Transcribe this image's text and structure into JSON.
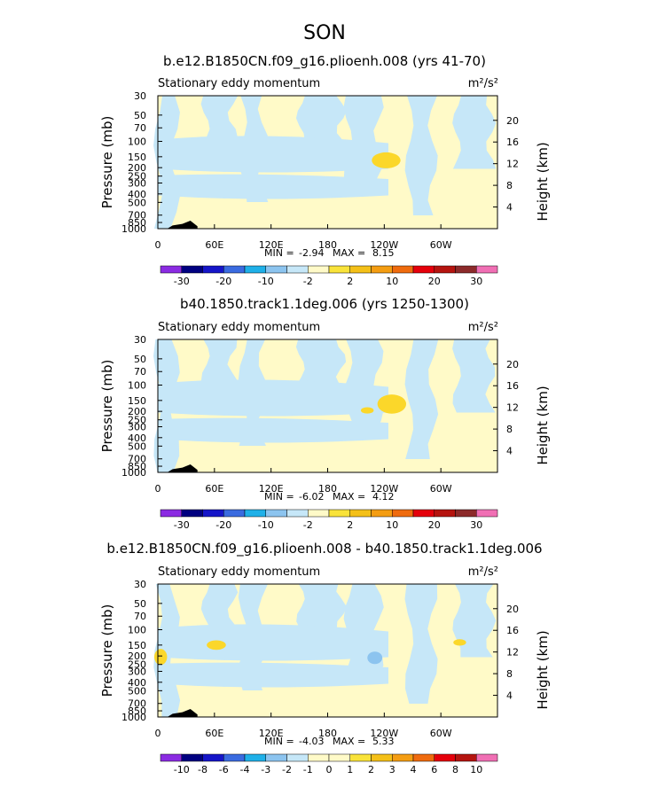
{
  "figure": {
    "title": "SON"
  },
  "colors": {
    "background_field": "#fffac8",
    "negative_fill": "#c6e7f8",
    "positive_fill": "#fbd72a",
    "negative_strong": "#8cc4ef",
    "orange": "#f4a41c",
    "terrain": "#000000"
  },
  "chart_data": [
    {
      "type": "heatmap",
      "title": "b.e12.B1850CN.f09_g16.plioenh.008 (yrs 41-70)",
      "subtitle": "Stationary eddy momentum",
      "units": "m²/s²",
      "xlabel": "",
      "ylabel": "Pressure (mb)",
      "ylabel_right": "Height (km)",
      "x_ticks": [
        "0",
        "60E",
        "120E",
        "180",
        "120W",
        "60W"
      ],
      "x_range_deg": [
        0,
        360
      ],
      "y_ticks": [
        "30",
        "50",
        "70",
        "100",
        "150",
        "200",
        "250",
        "300",
        "400",
        "500",
        "700",
        "850",
        "1000"
      ],
      "y_range_mb": [
        30,
        1000
      ],
      "height_ticks_km": [
        "20",
        "16",
        "12",
        "8",
        "4"
      ],
      "stats": {
        "min_label": "MIN =",
        "min": "-2.94",
        "max_label": "MAX =",
        "max": "8.15"
      },
      "colorbar": {
        "labels": [
          "-30",
          "-20",
          "-10",
          "-2",
          "2",
          "10",
          "20",
          "30"
        ],
        "colors": [
          "#8b2be2",
          "#000080",
          "#1515c8",
          "#3a6be0",
          "#1fb0e8",
          "#8cc4ef",
          "#c6e7f8",
          "#fffac8",
          "#f9e33a",
          "#f4c018",
          "#f49d12",
          "#ef6b0e",
          "#e5000b",
          "#b5140f",
          "#8c2a2a",
          "#f06fb4"
        ]
      },
      "features": {
        "blue_regions": [
          {
            "lon": 20,
            "p": 40,
            "w": 60,
            "h": 0.18
          },
          {
            "lon": 170,
            "p": 40,
            "w": 60,
            "h": 0.12
          },
          {
            "lon": 345,
            "p": 55,
            "w": 40,
            "h": 0.2
          }
        ],
        "yellow_blobs": [
          {
            "lon": 242,
            "p": 165,
            "rx": 9,
            "ry": 5
          }
        ],
        "terrain": [
          {
            "lon_start": 10,
            "lon_end": 42,
            "max_height": 0.03
          }
        ]
      }
    },
    {
      "type": "heatmap",
      "title": "b40.1850.track1.1deg.006 (yrs 1250-1300)",
      "subtitle": "Stationary eddy momentum",
      "units": "m²/s²",
      "xlabel": "",
      "ylabel": "Pressure (mb)",
      "ylabel_right": "Height (km)",
      "x_ticks": [
        "0",
        "60E",
        "120E",
        "180",
        "120W",
        "60W"
      ],
      "x_range_deg": [
        0,
        360
      ],
      "y_ticks": [
        "30",
        "50",
        "70",
        "100",
        "150",
        "200",
        "250",
        "300",
        "400",
        "500",
        "700",
        "850",
        "1000"
      ],
      "y_range_mb": [
        30,
        1000
      ],
      "height_ticks_km": [
        "20",
        "16",
        "12",
        "8",
        "4"
      ],
      "stats": {
        "min_label": "MIN =",
        "min": "-6.02",
        "max_label": "MAX =",
        "max": "4.12"
      },
      "colorbar": {
        "labels": [
          "-30",
          "-20",
          "-10",
          "-2",
          "2",
          "10",
          "20",
          "30"
        ],
        "colors": [
          "#8b2be2",
          "#000080",
          "#1515c8",
          "#3a6be0",
          "#1fb0e8",
          "#8cc4ef",
          "#c6e7f8",
          "#fffac8",
          "#f9e33a",
          "#f4c018",
          "#f49d12",
          "#ef6b0e",
          "#e5000b",
          "#b5140f",
          "#8c2a2a",
          "#f06fb4"
        ]
      },
      "features": {
        "yellow_blobs": [
          {
            "lon": 248,
            "p": 165,
            "rx": 9,
            "ry": 6
          },
          {
            "lon": 222,
            "p": 195,
            "rx": 4,
            "ry": 2
          }
        ],
        "terrain": [
          {
            "lon_start": 10,
            "lon_end": 42,
            "max_height": 0.03
          }
        ]
      }
    },
    {
      "type": "heatmap",
      "title": "b.e12.B1850CN.f09_g16.plioenh.008 - b40.1850.track1.1deg.006",
      "subtitle": "Stationary eddy momentum",
      "units": "m²/s²",
      "xlabel": "",
      "ylabel": "Pressure (mb)",
      "ylabel_right": "Height (km)",
      "x_ticks": [
        "0",
        "60E",
        "120E",
        "180",
        "120W",
        "60W"
      ],
      "x_range_deg": [
        0,
        360
      ],
      "y_ticks": [
        "30",
        "50",
        "70",
        "100",
        "150",
        "200",
        "250",
        "300",
        "400",
        "500",
        "700",
        "850",
        "1000"
      ],
      "y_range_mb": [
        30,
        1000
      ],
      "height_ticks_km": [
        "20",
        "16",
        "12",
        "8",
        "4"
      ],
      "stats": {
        "min_label": "MIN =",
        "min": "-4.03",
        "max_label": "MAX =",
        "max": "5.33"
      },
      "colorbar": {
        "labels": [
          "-10",
          "-8",
          "-6",
          "-4",
          "-3",
          "-2",
          "-1",
          "0",
          "1",
          "2",
          "3",
          "4",
          "6",
          "8",
          "10"
        ],
        "colors": [
          "#8b2be2",
          "#000080",
          "#1515c8",
          "#3a6be0",
          "#1fb0e8",
          "#8cc4ef",
          "#c6e7f8",
          "#fffac8",
          "#fffac8",
          "#f9e33a",
          "#f4c018",
          "#f49d12",
          "#ef6b0e",
          "#e5000b",
          "#b5140f",
          "#f06fb4"
        ]
      },
      "features": {
        "yellow_blobs": [
          {
            "lon": 62,
            "p": 150,
            "rx": 6,
            "ry": 3
          },
          {
            "lon": 3,
            "p": 205,
            "rx": 4,
            "ry": 5
          },
          {
            "lon": 320,
            "p": 140,
            "rx": 4,
            "ry": 2
          }
        ],
        "blue_blobs": [
          {
            "lon": 230,
            "p": 210,
            "rx": 6,
            "ry": 5
          }
        ],
        "terrain": [
          {
            "lon_start": 10,
            "lon_end": 42,
            "max_height": 0.03
          }
        ]
      }
    }
  ]
}
